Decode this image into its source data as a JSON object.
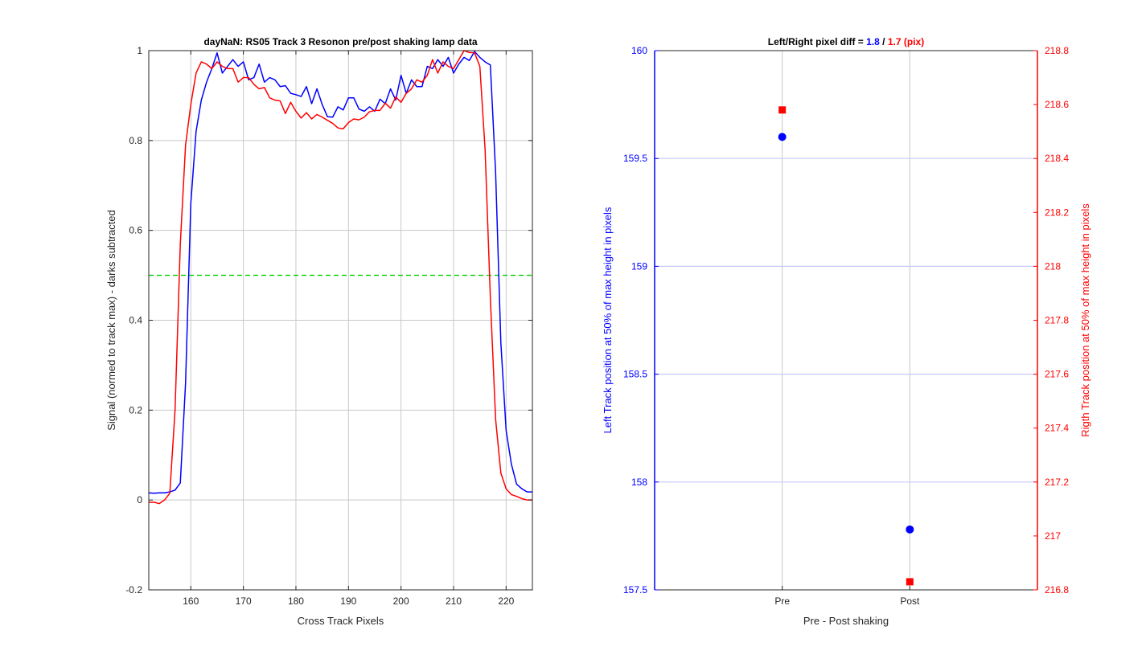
{
  "colors": {
    "pre": "#0000ff",
    "post": "#ff0000",
    "threshold": "#00cc00",
    "grid": "#c8c8c8",
    "right_grid": "#c8c8ff",
    "axes": "#262626"
  },
  "chart_data": [
    {
      "type": "line",
      "title": "dayNaN: RS05  Track 3 Resonon pre/post shaking lamp data",
      "xlabel": "Cross Track Pixels",
      "ylabel": "Signal (normed to track max) - darks subtracted",
      "xlim": [
        152,
        225
      ],
      "ylim": [
        -0.2,
        1
      ],
      "xticks": [
        160,
        170,
        180,
        190,
        200,
        210,
        220
      ],
      "xtick_labels": [
        "160",
        "170",
        "180",
        "190",
        "200",
        "210",
        "220"
      ],
      "yticks": [
        -0.2,
        0,
        0.2,
        0.4,
        0.6,
        0.8,
        1
      ],
      "ytick_labels": [
        "-0.2",
        "0",
        "0.2",
        "0.4",
        "0.6",
        "0.8",
        "1"
      ],
      "grid": true,
      "threshold_line": {
        "y": 0.5,
        "style": "dashed",
        "color": "#00cc00"
      },
      "series": [
        {
          "color": "#0000ff",
          "x": [
            152,
            153,
            154,
            155,
            156,
            157,
            158,
            159,
            160,
            161,
            162,
            163,
            164,
            165,
            166,
            167,
            168,
            169,
            170,
            171,
            172,
            173,
            174,
            175,
            176,
            177,
            178,
            179,
            180,
            181,
            182,
            183,
            184,
            185,
            186,
            187,
            188,
            189,
            190,
            191,
            192,
            193,
            194,
            195,
            196,
            197,
            198,
            199,
            200,
            201,
            202,
            203,
            204,
            205,
            206,
            207,
            208,
            209,
            210,
            211,
            212,
            213,
            214,
            215,
            216,
            217,
            218,
            219,
            220,
            221,
            222,
            223,
            224,
            225
          ],
          "y": [
            0.016,
            0.015,
            0.016,
            0.016,
            0.018,
            0.022,
            0.038,
            0.26,
            0.66,
            0.82,
            0.89,
            0.93,
            0.96,
            0.995,
            0.95,
            0.965,
            0.98,
            0.965,
            0.975,
            0.935,
            0.94,
            0.97,
            0.93,
            0.94,
            0.935,
            0.92,
            0.922,
            0.905,
            0.902,
            0.898,
            0.92,
            0.882,
            0.915,
            0.88,
            0.853,
            0.852,
            0.875,
            0.868,
            0.895,
            0.895,
            0.87,
            0.865,
            0.875,
            0.865,
            0.892,
            0.882,
            0.915,
            0.89,
            0.945,
            0.905,
            0.935,
            0.92,
            0.92,
            0.965,
            0.96,
            0.98,
            0.965,
            0.985,
            0.95,
            0.97,
            0.985,
            0.978,
            0.998,
            0.985,
            0.975,
            0.968,
            0.73,
            0.35,
            0.155,
            0.08,
            0.035,
            0.025,
            0.018,
            0.018
          ]
        },
        {
          "color": "#ff0000",
          "x": [
            152,
            153,
            154,
            155,
            156,
            157,
            158,
            159,
            160,
            161,
            162,
            163,
            164,
            165,
            166,
            167,
            168,
            169,
            170,
            171,
            172,
            173,
            174,
            175,
            176,
            177,
            178,
            179,
            180,
            181,
            182,
            183,
            184,
            185,
            186,
            187,
            188,
            189,
            190,
            191,
            192,
            193,
            194,
            195,
            196,
            197,
            198,
            199,
            200,
            201,
            202,
            203,
            204,
            205,
            206,
            207,
            208,
            209,
            210,
            211,
            212,
            213,
            214,
            215,
            216,
            217,
            218,
            219,
            220,
            221,
            222,
            223,
            224,
            225
          ],
          "y": [
            -0.005,
            -0.005,
            -0.008,
            0.0,
            0.015,
            0.2,
            0.57,
            0.79,
            0.88,
            0.95,
            0.975,
            0.97,
            0.96,
            0.975,
            0.965,
            0.96,
            0.96,
            0.93,
            0.94,
            0.94,
            0.925,
            0.915,
            0.918,
            0.895,
            0.89,
            0.888,
            0.86,
            0.885,
            0.865,
            0.85,
            0.862,
            0.848,
            0.858,
            0.852,
            0.845,
            0.838,
            0.828,
            0.826,
            0.84,
            0.848,
            0.846,
            0.852,
            0.864,
            0.867,
            0.867,
            0.883,
            0.872,
            0.897,
            0.885,
            0.905,
            0.915,
            0.935,
            0.93,
            0.945,
            0.98,
            0.95,
            0.975,
            0.965,
            0.96,
            0.98,
            1.0,
            0.996,
            0.995,
            0.965,
            0.78,
            0.45,
            0.18,
            0.06,
            0.025,
            0.012,
            0.008,
            0.003,
            0.0,
            0.0
          ]
        }
      ]
    },
    {
      "type": "scatter",
      "title_prefix": "Left/Right pixel diff = ",
      "title_left_value": "1.8",
      "title_sep": " / ",
      "title_right_value": "1.7 (pix)",
      "xlabel": "Pre - Post shaking",
      "categories": [
        "Pre",
        "Post"
      ],
      "left_axis": {
        "label": "Left Track position at 50% of max height in pixels",
        "ylim": [
          157.5,
          160
        ],
        "ticks": [
          157.5,
          158,
          158.5,
          159,
          159.5,
          160
        ],
        "tick_labels": [
          "157.5",
          "158",
          "158.5",
          "159",
          "159.5",
          "160"
        ],
        "color": "#0000ff"
      },
      "right_axis": {
        "label": "Rigth Track position at 50% of max height in pixels",
        "ylim": [
          216.8,
          218.8
        ],
        "ticks": [
          216.8,
          217,
          217.2,
          217.4,
          217.6,
          217.8,
          218,
          218.2,
          218.4,
          218.6,
          218.8
        ],
        "tick_labels": [
          "216.8",
          "217",
          "217.2",
          "217.4",
          "217.6",
          "217.8",
          "218",
          "218.2",
          "218.4",
          "218.6",
          "218.8"
        ],
        "color": "#ff0000"
      },
      "series": [
        {
          "axis": "left",
          "marker": "circle",
          "color": "#0000ff",
          "values": [
            159.6,
            157.78
          ]
        },
        {
          "axis": "right",
          "marker": "square",
          "color": "#ff0000",
          "values": [
            218.58,
            216.83
          ]
        }
      ]
    }
  ]
}
